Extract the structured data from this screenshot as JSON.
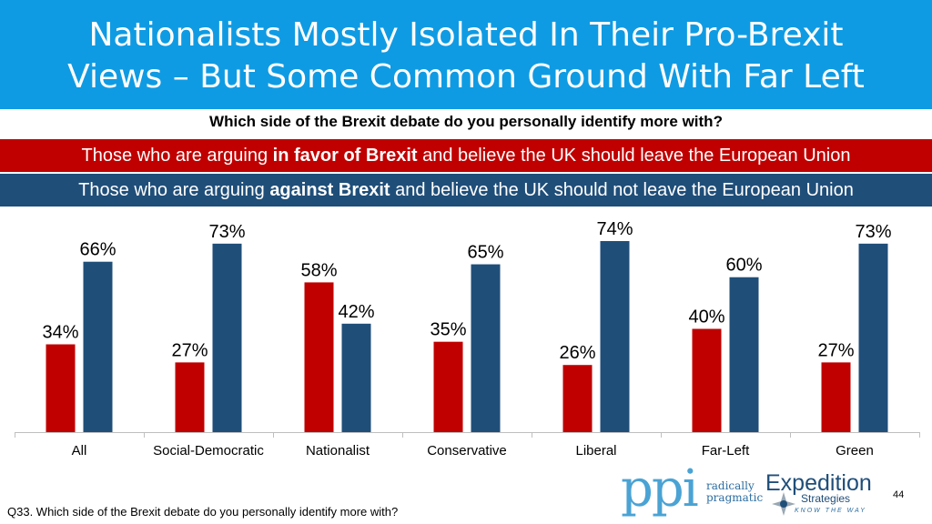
{
  "title_line1": "Nationalists Mostly Isolated In Their Pro-Brexit",
  "title_line2": "Views – But Some Common Ground With Far Left",
  "question": "Which side of the Brexit debate do you personally identify more with?",
  "legend": {
    "favor_pre": "Those who are arguing ",
    "favor_bold": "in favor of Brexit",
    "favor_post": " and believe the UK should leave the European Union",
    "against_pre": "Those who are arguing ",
    "against_bold": "against Brexit",
    "against_post": " and believe the UK should not leave the European Union"
  },
  "colors": {
    "title_bg": "#0f9be3",
    "favor": "#c00000",
    "against": "#1f4e79"
  },
  "footnote": "Q33. Which side of the Brexit debate do you personally identify more with?",
  "page_number": "44",
  "logos": {
    "ppi": "ppi",
    "ppi_tag_line1": "radically",
    "ppi_tag_line2": "pragmatic",
    "expedition_name": "Expedition",
    "expedition_sub": "Strategies",
    "expedition_tag": "KNOW THE WAY"
  },
  "chart_data": {
    "type": "bar",
    "categories": [
      "All",
      "Social-Democratic",
      "Nationalist",
      "Conservative",
      "Liberal",
      "Far-Left",
      "Green"
    ],
    "series": [
      {
        "key": "favor",
        "values": [
          34,
          27,
          58,
          35,
          26,
          40,
          27
        ]
      },
      {
        "key": "against",
        "values": [
          66,
          73,
          42,
          65,
          74,
          60,
          73
        ]
      }
    ],
    "value_suffix": "%",
    "ylim": [
      0,
      74
    ],
    "grid": false,
    "legend_position": "top"
  }
}
